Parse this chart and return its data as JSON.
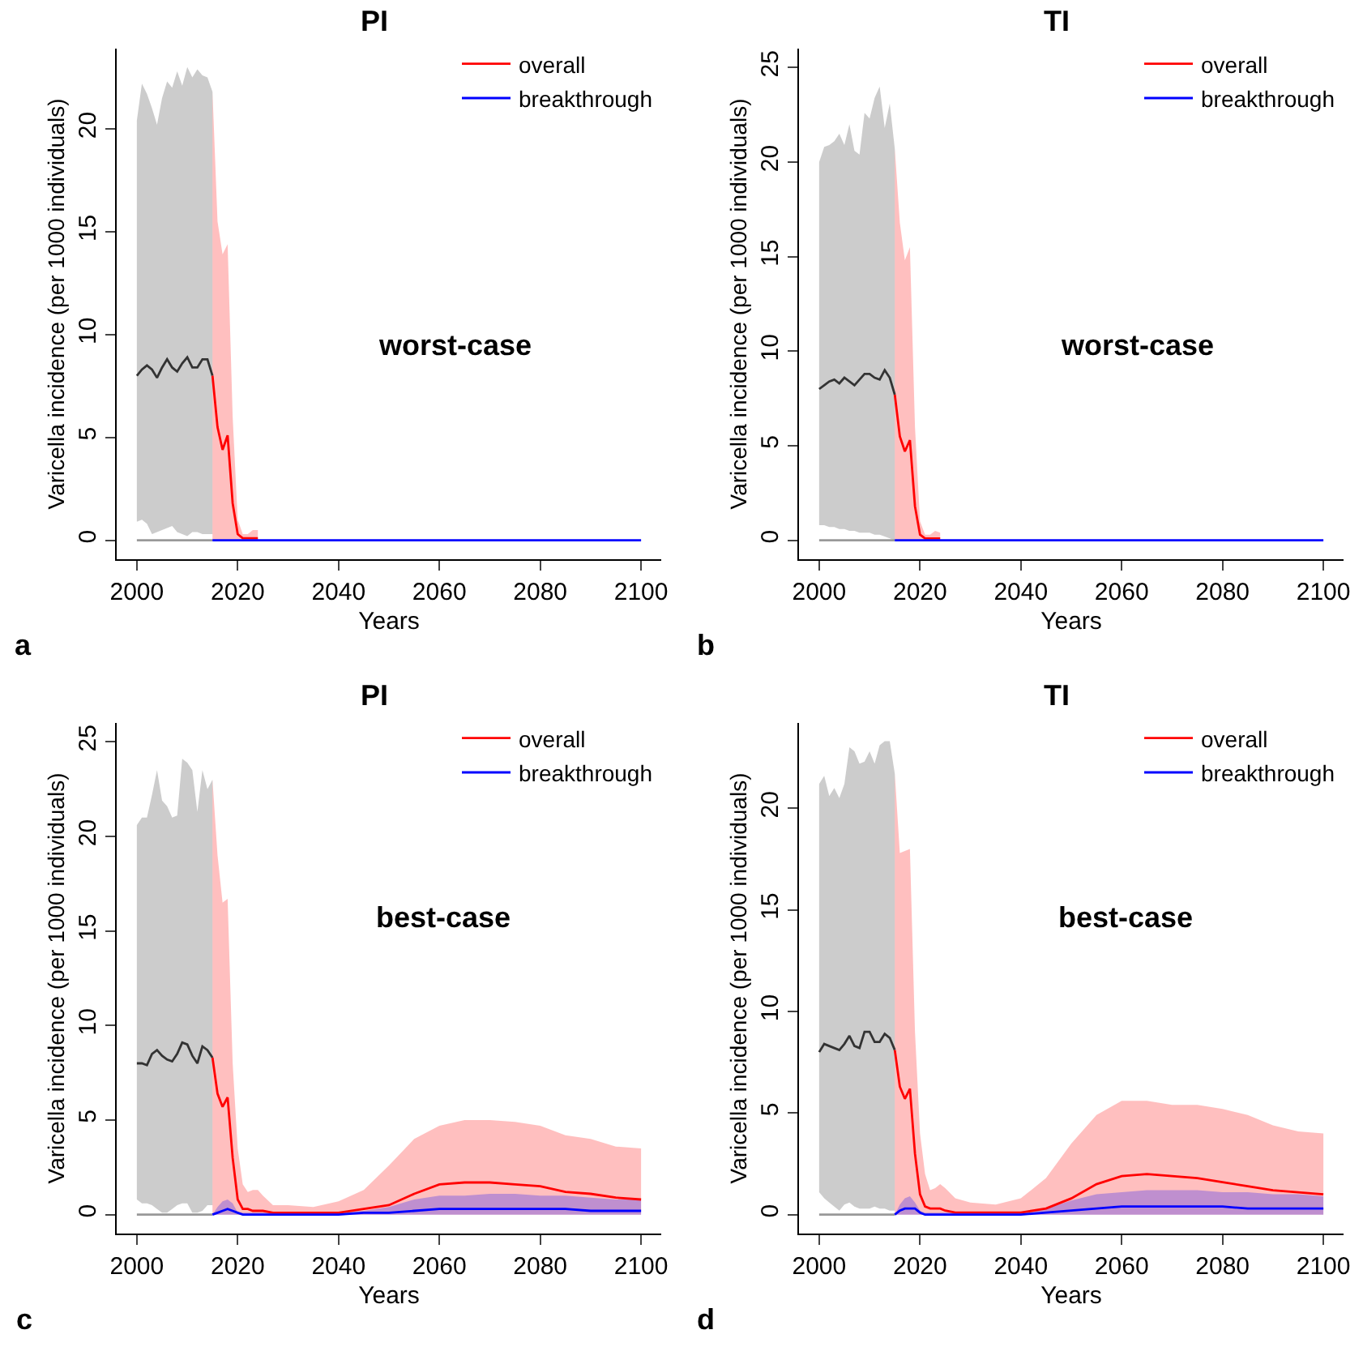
{
  "chart_data": [
    {
      "type": "line",
      "title": "PI",
      "xlabel": "Years",
      "ylabel": "Varicella incidence (per 1000 individuals)",
      "annotations": [
        "worst-case",
        "a"
      ],
      "xlim": [
        1996,
        2104
      ],
      "xticks": [
        2000,
        2020,
        2040,
        2060,
        2080,
        2100
      ],
      "ylim": [
        -0.92,
        23.9
      ],
      "yticks": [
        0,
        5,
        10,
        15,
        20
      ],
      "grid": false,
      "legend": "top right",
      "marker": "none",
      "line_style": "solid",
      "series": [
        {
          "color": "#333333",
          "x": [
            2000,
            2001,
            2002,
            2003,
            2004,
            2005,
            2006,
            2007,
            2008,
            2009,
            2010,
            2011,
            2012,
            2013,
            2014,
            2015
          ],
          "values": [
            8.0,
            8.3,
            8.5,
            8.3,
            7.9,
            8.4,
            8.8,
            8.4,
            8.2,
            8.6,
            8.9,
            8.4,
            8.4,
            8.8,
            8.8,
            8.0
          ],
          "lower": [
            0.9,
            1.0,
            0.8,
            0.3,
            0.4,
            0.5,
            0.6,
            0.7,
            0.4,
            0.3,
            0.2,
            0.4,
            0.4,
            0.3,
            0.3,
            0.3
          ],
          "upper": [
            20.4,
            22.2,
            21.7,
            21.0,
            20.2,
            21.5,
            22.3,
            22.0,
            22.8,
            22.1,
            23.0,
            22.5,
            22.9,
            22.6,
            22.5,
            21.8
          ]
        },
        {
          "color": "#999999",
          "x": [
            2000,
            2015
          ],
          "values": [
            0,
            0
          ]
        },
        {
          "name": "overall",
          "color": "#ff0000",
          "x": [
            2015,
            2016,
            2017,
            2018,
            2019,
            2020,
            2021,
            2022,
            2023,
            2024
          ],
          "values": [
            8.0,
            5.5,
            4.4,
            5.1,
            1.8,
            0.3,
            0.1,
            0.1,
            0.1,
            0.1
          ],
          "lower": [
            0,
            0,
            0,
            0,
            0,
            0,
            0,
            0,
            0,
            0
          ],
          "upper": [
            21.8,
            15.5,
            13.9,
            14.4,
            6.0,
            1.0,
            0.3,
            0.3,
            0.5,
            0.5
          ]
        },
        {
          "name": "breakthrough",
          "color": "#0000ff",
          "x": [
            2015,
            2020,
            2030,
            2100
          ],
          "values": [
            0,
            0,
            0,
            0
          ]
        }
      ]
    },
    {
      "type": "line",
      "title": "TI",
      "xlabel": "Years",
      "ylabel": "Varicella incidence (per 1000 individuals)",
      "annotations": [
        "worst-case",
        "b"
      ],
      "xlim": [
        1996,
        2104
      ],
      "xticks": [
        2000,
        2020,
        2040,
        2060,
        2080,
        2100
      ],
      "ylim": [
        -1,
        26
      ],
      "yticks": [
        0,
        5,
        10,
        15,
        20,
        25
      ],
      "grid": false,
      "legend": "top right",
      "marker": "none",
      "line_style": "solid",
      "series": [
        {
          "color": "#333333",
          "x": [
            2000,
            2001,
            2002,
            2003,
            2004,
            2005,
            2006,
            2007,
            2008,
            2009,
            2010,
            2011,
            2012,
            2013,
            2014,
            2015
          ],
          "values": [
            8.0,
            8.2,
            8.4,
            8.5,
            8.3,
            8.6,
            8.4,
            8.2,
            8.5,
            8.8,
            8.8,
            8.6,
            8.5,
            9.0,
            8.6,
            7.7
          ],
          "lower": [
            0.8,
            0.8,
            0.7,
            0.7,
            0.6,
            0.6,
            0.5,
            0.5,
            0.4,
            0.4,
            0.4,
            0.3,
            0.3,
            0.2,
            0.1,
            0.0
          ],
          "upper": [
            20.0,
            20.8,
            20.9,
            21.1,
            21.5,
            20.9,
            22.0,
            20.6,
            20.4,
            22.6,
            22.3,
            23.4,
            24.0,
            21.8,
            23.1,
            20.7
          ]
        },
        {
          "color": "#999999",
          "x": [
            2000,
            2015
          ],
          "values": [
            0,
            0
          ]
        },
        {
          "name": "overall",
          "color": "#ff0000",
          "x": [
            2015,
            2016,
            2017,
            2018,
            2019,
            2020,
            2021,
            2022,
            2023,
            2024
          ],
          "values": [
            7.7,
            5.5,
            4.7,
            5.3,
            1.8,
            0.3,
            0.1,
            0.1,
            0.1,
            0.1
          ],
          "lower": [
            0,
            0,
            0,
            0,
            0,
            0,
            0,
            0,
            0,
            0
          ],
          "upper": [
            20.7,
            16.8,
            14.8,
            15.5,
            6.0,
            1.0,
            0.3,
            0.3,
            0.5,
            0.4
          ]
        },
        {
          "name": "breakthrough",
          "color": "#0000ff",
          "x": [
            2015,
            2020,
            2030,
            2100
          ],
          "values": [
            0,
            0,
            0,
            0
          ]
        }
      ]
    },
    {
      "type": "line",
      "title": "PI",
      "xlabel": "Years",
      "ylabel": "Varicella incidence (per 1000 individuals)",
      "annotations": [
        "best-case",
        "c"
      ],
      "xlim": [
        1996,
        2104
      ],
      "xticks": [
        2000,
        2020,
        2040,
        2060,
        2080,
        2100
      ],
      "ylim": [
        -1,
        26
      ],
      "yticks": [
        0,
        5,
        10,
        15,
        20,
        25
      ],
      "grid": false,
      "legend": "top right",
      "marker": "none",
      "line_style": "solid",
      "series": [
        {
          "color": "#333333",
          "x": [
            2000,
            2001,
            2002,
            2003,
            2004,
            2005,
            2006,
            2007,
            2008,
            2009,
            2010,
            2011,
            2012,
            2013,
            2014,
            2015
          ],
          "values": [
            8.0,
            8.0,
            7.9,
            8.5,
            8.7,
            8.4,
            8.2,
            8.1,
            8.5,
            9.1,
            9.0,
            8.4,
            8.0,
            8.9,
            8.7,
            8.3
          ],
          "lower": [
            0.8,
            0.6,
            0.6,
            0.5,
            0.3,
            0.1,
            0.1,
            0.3,
            0.5,
            0.6,
            0.6,
            0.1,
            0.1,
            0.2,
            0.5,
            0.5
          ],
          "upper": [
            20.6,
            21.0,
            21.0,
            22.2,
            23.5,
            21.9,
            21.6,
            21.0,
            21.1,
            24.1,
            23.9,
            23.5,
            21.3,
            23.5,
            22.5,
            23.0
          ]
        },
        {
          "color": "#999999",
          "x": [
            2000,
            2015
          ],
          "values": [
            0,
            0
          ]
        },
        {
          "name": "overall",
          "color": "#ff0000",
          "x": [
            2015,
            2016,
            2017,
            2018,
            2019,
            2020,
            2021,
            2022,
            2023,
            2024,
            2025,
            2027,
            2030,
            2035,
            2040,
            2045,
            2050,
            2055,
            2060,
            2065,
            2070,
            2075,
            2080,
            2085,
            2090,
            2095,
            2100
          ],
          "values": [
            8.3,
            6.4,
            5.7,
            6.2,
            3.0,
            0.8,
            0.3,
            0.3,
            0.2,
            0.2,
            0.2,
            0.1,
            0.1,
            0.1,
            0.1,
            0.3,
            0.5,
            1.1,
            1.6,
            1.7,
            1.7,
            1.6,
            1.5,
            1.2,
            1.1,
            0.9,
            0.8
          ],
          "lower": [
            0,
            0,
            0,
            0,
            0,
            0,
            0,
            0,
            0,
            0,
            0,
            0,
            0,
            0,
            0,
            0,
            0,
            0,
            0,
            0,
            0,
            0,
            0,
            0,
            0,
            0,
            0
          ],
          "upper": [
            23.0,
            19.0,
            16.5,
            16.7,
            8.0,
            3.5,
            1.6,
            1.2,
            1.3,
            1.3,
            1.0,
            0.5,
            0.5,
            0.4,
            0.7,
            1.3,
            2.6,
            4.0,
            4.7,
            5.0,
            5.0,
            4.9,
            4.7,
            4.2,
            4.0,
            3.6,
            3.5
          ]
        },
        {
          "name": "breakthrough",
          "color": "#0000ff",
          "x": [
            2015,
            2016,
            2017,
            2018,
            2019,
            2020,
            2021,
            2022,
            2023,
            2024,
            2025,
            2027,
            2030,
            2035,
            2040,
            2045,
            2050,
            2055,
            2060,
            2065,
            2070,
            2075,
            2080,
            2085,
            2090,
            2095,
            2100
          ],
          "values": [
            0,
            0.1,
            0.2,
            0.3,
            0.2,
            0.1,
            0,
            0,
            0,
            0,
            0,
            0,
            0,
            0,
            0,
            0.1,
            0.1,
            0.2,
            0.3,
            0.3,
            0.3,
            0.3,
            0.3,
            0.3,
            0.2,
            0.2,
            0.2
          ],
          "lower": [
            0,
            0,
            0,
            0,
            0,
            0,
            0,
            0,
            0,
            0,
            0,
            0,
            0,
            0,
            0,
            0,
            0,
            0,
            0,
            0,
            0,
            0,
            0,
            0,
            0,
            0,
            0
          ],
          "upper": [
            0,
            0.4,
            0.7,
            0.8,
            0.6,
            0.1,
            0.1,
            0.1,
            0.1,
            0.1,
            0.1,
            0.1,
            0.1,
            0.1,
            0.1,
            0.2,
            0.4,
            0.8,
            1.0,
            1.0,
            1.1,
            1.1,
            1.0,
            1.0,
            0.9,
            0.8,
            0.8
          ]
        }
      ]
    },
    {
      "type": "line",
      "title": "TI",
      "xlabel": "Years",
      "ylabel": "Varicella incidence (per 1000 individuals)",
      "annotations": [
        "best-case",
        "d"
      ],
      "xlim": [
        1996,
        2104
      ],
      "xticks": [
        2000,
        2020,
        2040,
        2060,
        2080,
        2100
      ],
      "ylim": [
        -0.93,
        24.2
      ],
      "yticks": [
        0,
        5,
        10,
        15,
        20
      ],
      "grid": false,
      "legend": "top right",
      "marker": "none",
      "line_style": "solid",
      "series": [
        {
          "color": "#333333",
          "x": [
            2000,
            2001,
            2002,
            2003,
            2004,
            2005,
            2006,
            2007,
            2008,
            2009,
            2010,
            2011,
            2012,
            2013,
            2014,
            2015
          ],
          "values": [
            8.0,
            8.4,
            8.3,
            8.2,
            8.1,
            8.4,
            8.8,
            8.3,
            8.2,
            9.0,
            9.0,
            8.5,
            8.5,
            8.9,
            8.7,
            8.1
          ],
          "lower": [
            1.1,
            0.8,
            0.6,
            0.4,
            0.2,
            0.5,
            0.6,
            0.4,
            0.3,
            0.3,
            0.3,
            0.4,
            0.3,
            0.3,
            0.2,
            0.2
          ],
          "upper": [
            21.2,
            21.6,
            20.6,
            21.0,
            20.5,
            21.2,
            23.0,
            22.8,
            22.2,
            22.3,
            22.8,
            22.2,
            23.1,
            23.3,
            23.3,
            21.7
          ]
        },
        {
          "color": "#999999",
          "x": [
            2000,
            2015
          ],
          "values": [
            0,
            0
          ]
        },
        {
          "name": "overall",
          "color": "#ff0000",
          "x": [
            2015,
            2016,
            2017,
            2018,
            2019,
            2020,
            2021,
            2022,
            2023,
            2024,
            2025,
            2027,
            2030,
            2035,
            2040,
            2045,
            2050,
            2055,
            2060,
            2065,
            2070,
            2075,
            2080,
            2085,
            2090,
            2095,
            2100
          ],
          "values": [
            8.1,
            6.3,
            5.7,
            6.2,
            3.0,
            1.0,
            0.4,
            0.3,
            0.3,
            0.3,
            0.2,
            0.1,
            0.1,
            0.1,
            0.1,
            0.3,
            0.8,
            1.5,
            1.9,
            2.0,
            1.9,
            1.8,
            1.6,
            1.4,
            1.2,
            1.1,
            1.0
          ],
          "lower": [
            0,
            0,
            0,
            0,
            0,
            0,
            0,
            0,
            0,
            0,
            0,
            0,
            0,
            0,
            0,
            0,
            0,
            0,
            0,
            0,
            0,
            0,
            0,
            0,
            0,
            0,
            0
          ],
          "upper": [
            21.7,
            17.8,
            17.9,
            18.0,
            9.0,
            4.0,
            2.0,
            1.2,
            1.3,
            1.5,
            1.3,
            0.8,
            0.6,
            0.5,
            0.8,
            1.8,
            3.5,
            4.9,
            5.6,
            5.6,
            5.4,
            5.4,
            5.2,
            4.9,
            4.4,
            4.1,
            4.0
          ]
        },
        {
          "name": "breakthrough",
          "color": "#0000ff",
          "x": [
            2015,
            2016,
            2017,
            2018,
            2019,
            2020,
            2021,
            2022,
            2023,
            2024,
            2025,
            2027,
            2030,
            2035,
            2040,
            2045,
            2050,
            2055,
            2060,
            2065,
            2070,
            2075,
            2080,
            2085,
            2090,
            2095,
            2100
          ],
          "values": [
            0,
            0.2,
            0.3,
            0.3,
            0.3,
            0.1,
            0,
            0,
            0,
            0,
            0,
            0,
            0,
            0,
            0,
            0.1,
            0.2,
            0.3,
            0.4,
            0.4,
            0.4,
            0.4,
            0.4,
            0.3,
            0.3,
            0.3,
            0.3
          ],
          "lower": [
            0,
            0,
            0,
            0,
            0,
            0,
            0,
            0,
            0,
            0,
            0,
            0,
            0,
            0,
            0,
            0,
            0,
            0,
            0,
            0,
            0,
            0,
            0,
            0,
            0,
            0,
            0
          ],
          "upper": [
            0,
            0.5,
            0.8,
            0.9,
            0.6,
            0.2,
            0.1,
            0.1,
            0.1,
            0.1,
            0.1,
            0.1,
            0.1,
            0.1,
            0.1,
            0.3,
            0.7,
            1.0,
            1.1,
            1.2,
            1.2,
            1.2,
            1.1,
            1.1,
            1.0,
            1.0,
            0.9
          ]
        }
      ]
    }
  ]
}
